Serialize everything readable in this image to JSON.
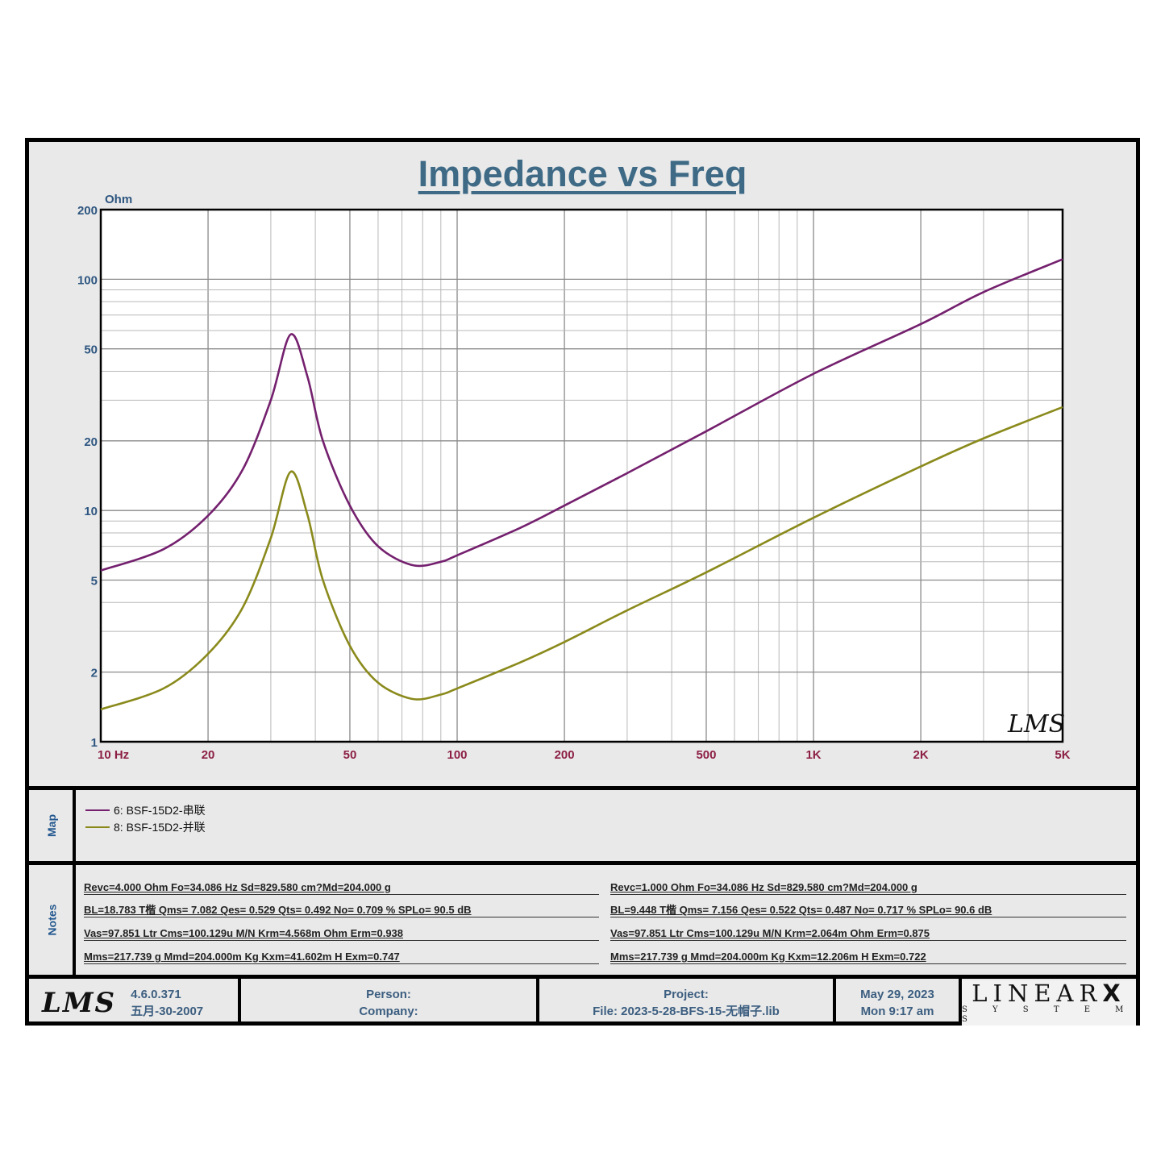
{
  "chart_data": {
    "type": "line",
    "title": "Impedance vs Freq",
    "xlabel": "Hz",
    "ylabel": "Ohm",
    "x_scale": "log",
    "y_scale": "log",
    "xlim": [
      10,
      5000
    ],
    "ylim": [
      1,
      200
    ],
    "x_ticks": [
      {
        "value": 10,
        "label": "10  Hz"
      },
      {
        "value": 20,
        "label": "20"
      },
      {
        "value": 50,
        "label": "50"
      },
      {
        "value": 100,
        "label": "100"
      },
      {
        "value": 200,
        "label": "200"
      },
      {
        "value": 500,
        "label": "500"
      },
      {
        "value": 1000,
        "label": "1K"
      },
      {
        "value": 2000,
        "label": "2K"
      },
      {
        "value": 5000,
        "label": "5K"
      }
    ],
    "y_ticks": [
      {
        "value": 1,
        "label": "1"
      },
      {
        "value": 2,
        "label": "2"
      },
      {
        "value": 5,
        "label": "5"
      },
      {
        "value": 10,
        "label": "10"
      },
      {
        "value": 20,
        "label": "20"
      },
      {
        "value": 50,
        "label": "50"
      },
      {
        "value": 100,
        "label": "100"
      },
      {
        "value": 200,
        "label": "200"
      }
    ],
    "grid": true,
    "legend_position": "below (Map panel)",
    "series": [
      {
        "name": "6: BSF-15D2-串联",
        "color": "#74206e",
        "points": [
          [
            10,
            5.5
          ],
          [
            15,
            6.8
          ],
          [
            20,
            9.5
          ],
          [
            25,
            15
          ],
          [
            30,
            30
          ],
          [
            34.1,
            57.7
          ],
          [
            38,
            38
          ],
          [
            42,
            20
          ],
          [
            50,
            10.5
          ],
          [
            60,
            7.0
          ],
          [
            75,
            5.8
          ],
          [
            90,
            6.0
          ],
          [
            100,
            6.4
          ],
          [
            150,
            8.4
          ],
          [
            200,
            10.5
          ],
          [
            300,
            14.5
          ],
          [
            500,
            22
          ],
          [
            1000,
            39
          ],
          [
            2000,
            64
          ],
          [
            3000,
            88
          ],
          [
            5000,
            122
          ]
        ]
      },
      {
        "name": "8: BSF-15D2-并联",
        "color": "#8a8a1c",
        "points": [
          [
            10,
            1.38
          ],
          [
            15,
            1.7
          ],
          [
            20,
            2.4
          ],
          [
            25,
            3.8
          ],
          [
            30,
            7.6
          ],
          [
            34.1,
            14.7
          ],
          [
            38,
            9.6
          ],
          [
            42,
            5.0
          ],
          [
            50,
            2.6
          ],
          [
            60,
            1.8
          ],
          [
            75,
            1.53
          ],
          [
            90,
            1.6
          ],
          [
            100,
            1.7
          ],
          [
            150,
            2.2
          ],
          [
            200,
            2.7
          ],
          [
            300,
            3.7
          ],
          [
            500,
            5.4
          ],
          [
            1000,
            9.3
          ],
          [
            2000,
            15.5
          ],
          [
            3000,
            20.5
          ],
          [
            5000,
            28
          ]
        ]
      }
    ]
  },
  "chart": {
    "title": "Impedance vs Freq",
    "y_unit": "Ohm",
    "watermark": "LMS"
  },
  "map": {
    "label": "Map",
    "items": [
      {
        "label": "6: BSF-15D2-串联",
        "color": "#74206e"
      },
      {
        "label": "8: BSF-15D2-并联",
        "color": "#8a8a1c"
      }
    ]
  },
  "notes": {
    "label": "Notes",
    "left": [
      "Revc=4.000 Ohm  Fo=34.086 Hz  Sd=829.580 cm?Md=204.000 g",
      "BL=18.783 T楷  Qms= 7.082  Qes= 0.529  Qts= 0.492  No= 0.709 %  SPLo= 90.5 dB",
      "Vas=97.851 Ltr  Cms=100.129u M/N  Krm=4.568m Ohm  Erm=0.938",
      "Mms=217.739 g  Mmd=204.000m Kg  Kxm=41.602m H  Exm=0.747"
    ],
    "right": [
      "Revc=1.000 Ohm  Fo=34.086 Hz  Sd=829.580 cm?Md=204.000 g",
      "BL=9.448 T楷  Qms= 7.156  Qes= 0.522  Qts= 0.487  No= 0.717 %  SPLo= 90.6 dB",
      "Vas=97.851 Ltr  Cms=100.129u M/N  Krm=2.064m Ohm  Erm=0.875",
      "Mms=217.739 g  Mmd=204.000m Kg  Kxm=12.206m H  Exm=0.722"
    ]
  },
  "footer": {
    "logo": "LMS",
    "version": "4.6.0.371",
    "build_date": "五月-30-2007",
    "person_label": "Person:",
    "company_label": "Company:",
    "project_label": "Project:",
    "file_label": "File: 2023-5-28-BFS-15-无帽子.lib",
    "date": "May 29, 2023",
    "time": "Mon  9:17 am",
    "brand": "LINEAR",
    "brand_x": "X",
    "brand_sub": "S Y S T E M S"
  }
}
